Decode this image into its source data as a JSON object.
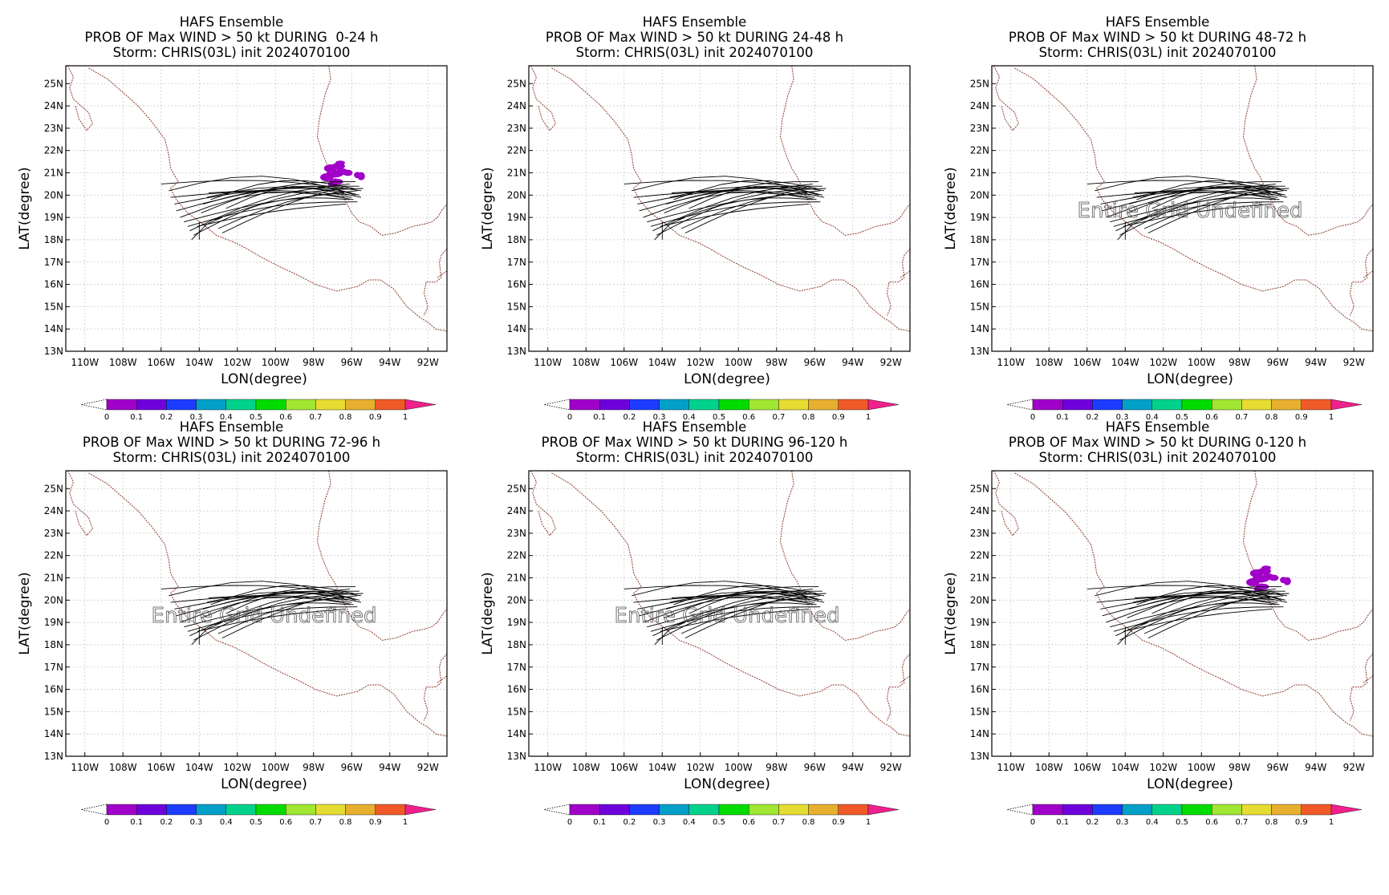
{
  "panels": [
    {
      "id": "p1",
      "title_line1": "HAFS Ensemble",
      "title_line2": "PROB OF Max WIND > 50 kt DURING  0-24 h",
      "title_line3": "Storm: CHRIS(03L) init 2024070100",
      "undefined_text": "",
      "has_prob_patch": true
    },
    {
      "id": "p2",
      "title_line1": "HAFS Ensemble",
      "title_line2": "PROB OF Max WIND > 50 kt DURING 24-48 h",
      "title_line3": "Storm: CHRIS(03L) init 2024070100",
      "undefined_text": "",
      "has_prob_patch": false
    },
    {
      "id": "p3",
      "title_line1": "HAFS Ensemble",
      "title_line2": "PROB OF Max WIND > 50 kt DURING 48-72 h",
      "title_line3": "Storm: CHRIS(03L) init 2024070100",
      "undefined_text": "Entire Grid Undefined",
      "has_prob_patch": false
    },
    {
      "id": "p4",
      "title_line1": "HAFS Ensemble",
      "title_line2": "PROB OF Max WIND > 50 kt DURING 72-96 h",
      "title_line3": "Storm: CHRIS(03L) init 2024070100",
      "undefined_text": "Entire Grid Undefined",
      "has_prob_patch": false
    },
    {
      "id": "p5",
      "title_line1": "HAFS Ensemble",
      "title_line2": "PROB OF Max WIND > 50 kt DURING 96-120 h",
      "title_line3": "Storm: CHRIS(03L) init 2024070100",
      "undefined_text": "Entire Grid Undefined",
      "has_prob_patch": false
    },
    {
      "id": "p6",
      "title_line1": "HAFS Ensemble",
      "title_line2": "PROB OF Max WIND > 50 kt DURING 0-120 h",
      "title_line3": "Storm: CHRIS(03L) init 2024070100",
      "undefined_text": "",
      "has_prob_patch": true
    }
  ],
  "axes": {
    "xlabel": "LON(degree)",
    "ylabel": "LAT(degree)",
    "lon_range": [
      -111,
      -91
    ],
    "lat_range": [
      13,
      25.8
    ],
    "lon_ticks": [
      -110,
      -108,
      -106,
      -104,
      -102,
      -100,
      -98,
      -96,
      -94,
      -92
    ],
    "lon_tick_labels": [
      "110W",
      "108W",
      "106W",
      "104W",
      "102W",
      "100W",
      "98W",
      "96W",
      "94W",
      "92W"
    ],
    "lat_ticks": [
      25,
      24,
      23,
      22,
      21,
      20,
      19,
      18,
      17,
      16,
      15,
      14,
      13
    ],
    "lat_tick_labels": [
      "25N",
      "24N",
      "23N",
      "22N",
      "21N",
      "20N",
      "19N",
      "18N",
      "17N",
      "16N",
      "15N",
      "14N",
      "13N"
    ],
    "grid": true
  },
  "colorbar": {
    "labels": [
      "0",
      "0.1",
      "0.2",
      "0.3",
      "0.4",
      "0.5",
      "0.6",
      "0.7",
      "0.8",
      "0.9",
      "1"
    ],
    "colors": [
      "#a000c8",
      "#6e00dc",
      "#1e3cff",
      "#00a0c8",
      "#00d28c",
      "#00dc00",
      "#a0e632",
      "#e6dc32",
      "#e6af2d",
      "#f05a28",
      "#f0208c"
    ]
  },
  "prob_patch_color": "#a000c8",
  "coast_color": "#8b3a2a",
  "track_color": "#000000"
}
